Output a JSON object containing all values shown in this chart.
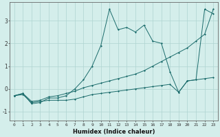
{
  "xlabel": "Humidex (Indice chaleur)",
  "xlim": [
    -0.5,
    23.5
  ],
  "ylim": [
    -1.4,
    3.8
  ],
  "background_color": "#d4eeeb",
  "grid_color": "#aed4d0",
  "line_color": "#1a6b6b",
  "xticks": [
    0,
    1,
    2,
    3,
    4,
    5,
    6,
    7,
    8,
    9,
    10,
    11,
    12,
    13,
    14,
    15,
    16,
    17,
    18,
    19,
    20,
    21,
    22,
    23
  ],
  "yticks": [
    -1,
    0,
    1,
    2,
    3
  ],
  "line1_x": [
    0,
    1,
    2,
    3,
    4,
    5,
    6,
    7,
    8,
    9,
    10,
    11,
    12,
    13,
    14,
    15,
    16,
    17,
    18,
    19,
    20,
    21,
    22,
    23
  ],
  "line1_y": [
    -0.3,
    -0.25,
    -0.6,
    -0.55,
    -0.5,
    -0.5,
    -0.5,
    -0.45,
    -0.35,
    -0.25,
    -0.2,
    -0.15,
    -0.1,
    -0.05,
    0.0,
    0.05,
    0.1,
    0.15,
    0.2,
    -0.15,
    0.35,
    0.4,
    0.45,
    0.5
  ],
  "line2_x": [
    0,
    1,
    2,
    3,
    4,
    5,
    6,
    7,
    8,
    9,
    10,
    11,
    12,
    13,
    14,
    15,
    16,
    17,
    18,
    19,
    20,
    21,
    22,
    23
  ],
  "line2_y": [
    -0.3,
    -0.2,
    -0.65,
    -0.6,
    -0.4,
    -0.4,
    -0.3,
    0.0,
    0.4,
    1.0,
    1.9,
    3.5,
    2.6,
    2.7,
    2.5,
    2.8,
    2.1,
    2.0,
    0.75,
    -0.15,
    0.35,
    0.4,
    3.5,
    3.3
  ],
  "line3_x": [
    0,
    1,
    2,
    3,
    4,
    5,
    6,
    7,
    8,
    9,
    10,
    11,
    12,
    13,
    14,
    15,
    16,
    17,
    18,
    19,
    20,
    21,
    22,
    23
  ],
  "line3_y": [
    -0.3,
    -0.2,
    -0.55,
    -0.5,
    -0.35,
    -0.3,
    -0.2,
    -0.1,
    0.05,
    0.15,
    0.25,
    0.35,
    0.45,
    0.55,
    0.65,
    0.8,
    1.0,
    1.2,
    1.4,
    1.6,
    1.8,
    2.1,
    2.4,
    3.5
  ]
}
